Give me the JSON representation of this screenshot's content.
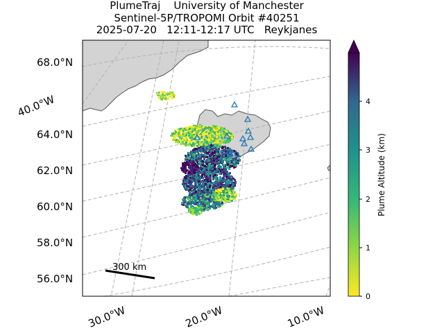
{
  "title": {
    "line1": "PlumeTraj    University of Manchester",
    "line2": "Sentinel-5P/TROPOMI Orbit #40251",
    "line3": "2025-07-20   12:11-12:17 UTC   Reykjanes"
  },
  "map": {
    "lat_labels": [
      "68.0°N",
      "64.0°N",
      "62.0°N",
      "60.0°N",
      "58.0°N",
      "56.0°N"
    ],
    "lon_labels_bottom": [
      "30.0°W",
      "20.0°W",
      "10.0°W"
    ],
    "lon_label_left": "40.0°W",
    "scale_bar_label": "300 km",
    "volcano_marker_color": "#1f77b4",
    "land_color": "#d3d3d3",
    "gridline_color": "#b0b0b0"
  },
  "colorbar": {
    "label": "Plume Altitude (km)",
    "tick_labels": [
      "0",
      "1",
      "2",
      "3",
      "4"
    ],
    "range": [
      0,
      5
    ],
    "colormap": "viridis_r",
    "extend": "max"
  }
}
